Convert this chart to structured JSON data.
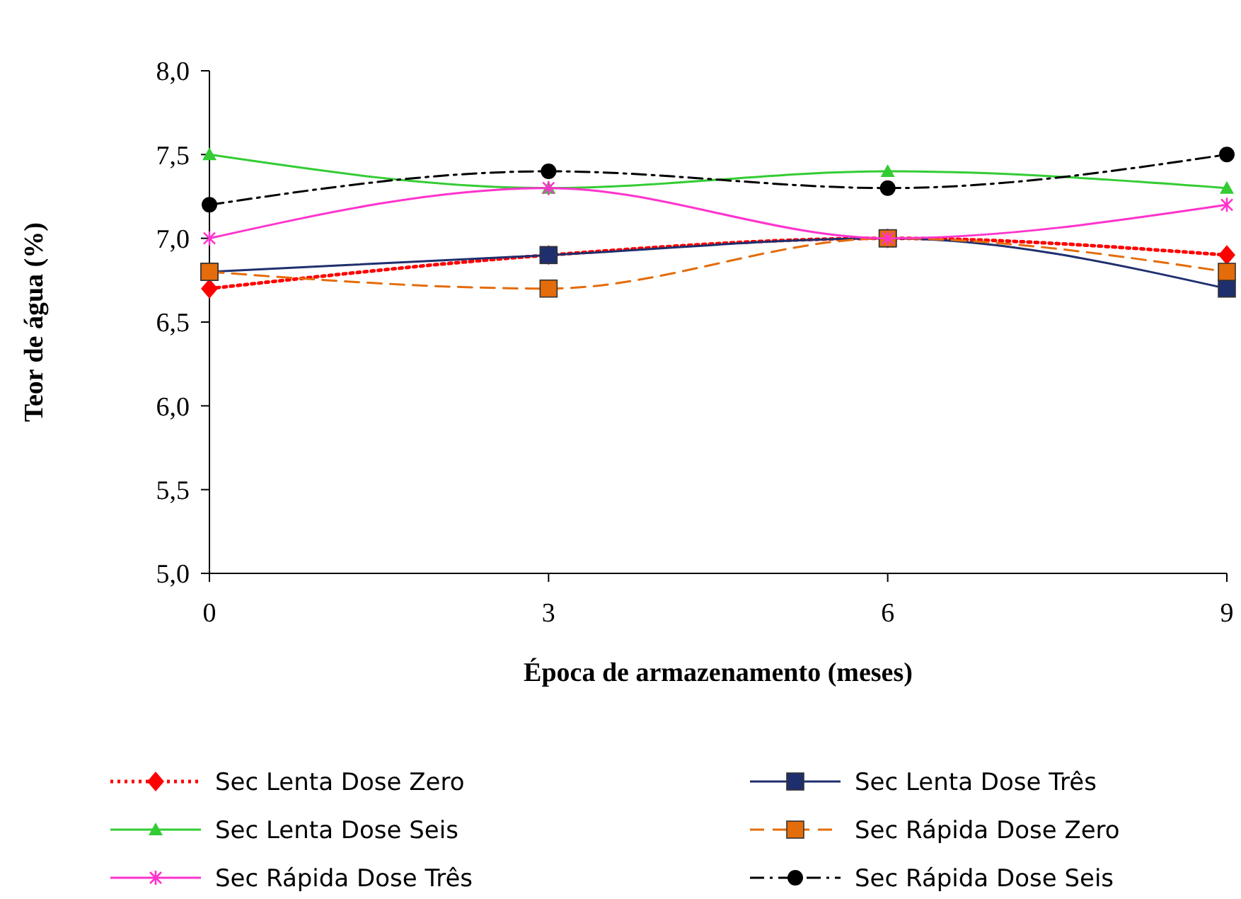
{
  "chart_data": {
    "type": "line",
    "xlabel": "Época de armazenamento (meses)",
    "ylabel": "Teor de água (%)",
    "x": [
      0,
      3,
      6,
      9
    ],
    "xlim": [
      0,
      9
    ],
    "xticks": [
      0,
      3,
      6,
      9
    ],
    "ylim": [
      5,
      8
    ],
    "yticks": [
      {
        "value": 5,
        "label": "5,0"
      },
      {
        "value": 5.5,
        "label": "5,5"
      },
      {
        "value": 6,
        "label": "6,0"
      },
      {
        "value": 6.5,
        "label": "6,5"
      },
      {
        "value": 7,
        "label": "7,0"
      },
      {
        "value": 7.5,
        "label": "7,5"
      },
      {
        "value": 8,
        "label": "8,0"
      }
    ],
    "legend": "bottom",
    "grid": false,
    "series": [
      {
        "name": "Sec Lenta Dose Zero",
        "color": "#ff0000",
        "marker": "diamond",
        "line_style": "dotted",
        "values": [
          6.7,
          6.9,
          7.0,
          6.9
        ]
      },
      {
        "name": "Sec Lenta Dose Três",
        "color": "#1f2f6e",
        "marker": "square",
        "line_style": "solid",
        "values": [
          6.8,
          6.9,
          7.0,
          6.7
        ]
      },
      {
        "name": "Sec Lenta Dose Seis",
        "color": "#33cc33",
        "marker": "triangle",
        "line_style": "solid",
        "values": [
          7.5,
          7.3,
          7.4,
          7.3
        ]
      },
      {
        "name": "Sec Rápida Dose Zero",
        "color": "#e46c0a",
        "marker": "square",
        "line_style": "dashed",
        "values": [
          6.8,
          6.7,
          7.0,
          6.8
        ]
      },
      {
        "name": "Sec Rápida Dose Três",
        "color": "#ff33cc",
        "marker": "cross",
        "line_style": "solid",
        "values": [
          7.0,
          7.3,
          7.0,
          7.2
        ]
      },
      {
        "name": "Sec Rápida Dose Seis",
        "color": "#000000",
        "marker": "circle",
        "line_style": "dashdot",
        "values": [
          7.2,
          7.4,
          7.3,
          7.5
        ]
      }
    ]
  }
}
